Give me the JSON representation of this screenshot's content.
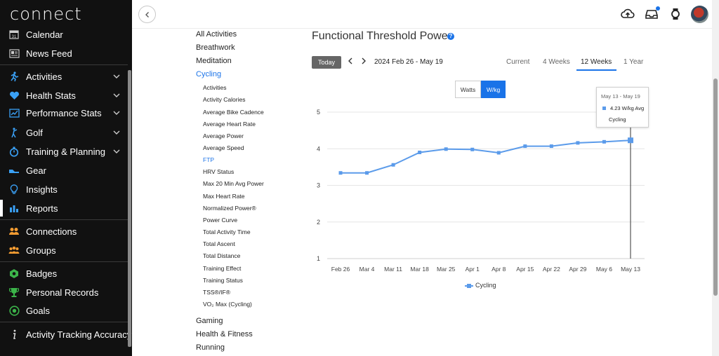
{
  "app": {
    "logo": "connect"
  },
  "sidebar": {
    "items": [
      {
        "label": "Calendar"
      },
      {
        "label": "News Feed"
      },
      {
        "label": "Activities"
      },
      {
        "label": "Health Stats"
      },
      {
        "label": "Performance Stats"
      },
      {
        "label": "Golf"
      },
      {
        "label": "Training & Planning"
      },
      {
        "label": "Gear"
      },
      {
        "label": "Insights"
      },
      {
        "label": "Reports"
      },
      {
        "label": "Connections"
      },
      {
        "label": "Groups"
      },
      {
        "label": "Badges"
      },
      {
        "label": "Personal Records"
      },
      {
        "label": "Goals"
      },
      {
        "label": "Activity Tracking Accuracy"
      }
    ],
    "calendar_day": "31"
  },
  "reports": {
    "top": [
      "All Activities",
      "Breathwork",
      "Meditation",
      "Cycling"
    ],
    "cycling_items": [
      "Activities",
      "Activity Calories",
      "Average Bike Cadence",
      "Average Heart Rate",
      "Average Power",
      "Average Speed",
      "FTP",
      "HRV Status",
      "Max 20 Min Avg Power",
      "Max Heart Rate",
      "Normalized Power®",
      "Power Curve",
      "Total Activity Time",
      "Total Ascent",
      "Total Distance",
      "Training Effect",
      "Training Status",
      "TSS®/IF®",
      "VO₂ Max (Cycling)"
    ],
    "bottom": [
      "Gaming",
      "Health & Fitness",
      "Running"
    ]
  },
  "main": {
    "title": "Functional Threshold Power",
    "today_label": "Today",
    "date_range": "2024 Feb 26 - May 19",
    "range_tabs": [
      "Current",
      "4 Weeks",
      "12 Weeks",
      "1 Year"
    ],
    "unit_toggle": [
      "Watts",
      "W/kg"
    ]
  },
  "tooltip": {
    "date": "May 13 - May 19",
    "value": "4.23 W/kg Avg",
    "series": "Cycling"
  },
  "colors": {
    "accent": "#1a73e8",
    "series": "#5b9bea",
    "sidebar_bg": "#111111"
  },
  "chart_data": {
    "type": "line",
    "categories": [
      "Feb 26",
      "Mar 4",
      "Mar 11",
      "Mar 18",
      "Mar 25",
      "Apr 1",
      "Apr 8",
      "Apr 15",
      "Apr 22",
      "Apr 29",
      "May 6",
      "May 13"
    ],
    "series": [
      {
        "name": "Cycling",
        "values": [
          3.34,
          3.34,
          3.56,
          3.9,
          3.99,
          3.98,
          3.89,
          4.07,
          4.07,
          4.16,
          4.19,
          4.23
        ]
      }
    ],
    "yticks": [
      "1",
      "2",
      "3",
      "4",
      "5"
    ],
    "ylim": [
      1,
      5
    ],
    "grid": true,
    "legend": "bottom-center"
  }
}
